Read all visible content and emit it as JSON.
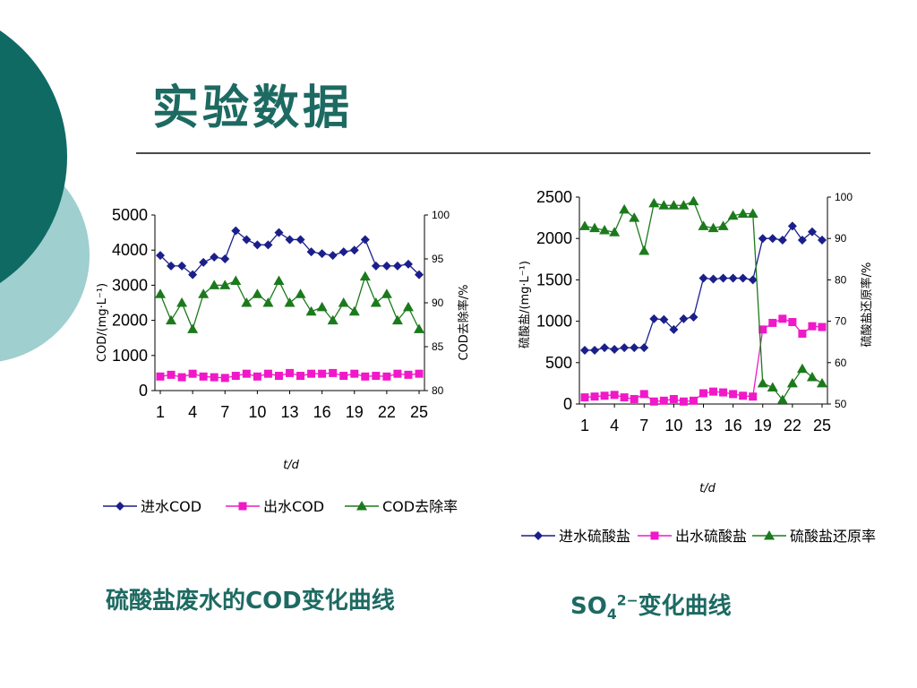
{
  "slide": {
    "title": "实验数据",
    "caption_left": "硫酸盐废水的COD变化曲线",
    "caption_right": {
      "base": "SO",
      "sub": "4",
      "sup": "2−",
      "rest": "变化曲线"
    }
  },
  "colors": {
    "teal_dark": "#0f6a64",
    "teal_light": "#9fcfcf",
    "navy": "#1a1f8a",
    "magenta": "#f018c8",
    "green": "#1b7a1b",
    "title": "#1d6a62"
  },
  "chart_data": [
    {
      "type": "line",
      "dual_axis": true,
      "x": [
        1,
        2,
        3,
        4,
        5,
        6,
        7,
        8,
        9,
        10,
        11,
        12,
        13,
        14,
        15,
        16,
        17,
        18,
        19,
        20,
        21,
        22,
        23,
        24,
        25
      ],
      "xticks": [
        1,
        4,
        7,
        10,
        13,
        16,
        19,
        22,
        25
      ],
      "xlabel": "t/d",
      "ylabel": "COD/(mg·L⁻¹)",
      "y2label": "COD去除率/%",
      "ylim": [
        0,
        5000
      ],
      "yticks": [
        0,
        1000,
        2000,
        3000,
        4000,
        5000
      ],
      "y2lim": [
        80,
        100
      ],
      "y2ticks": [
        80,
        85,
        90,
        95,
        100
      ],
      "series": [
        {
          "name": "进水COD",
          "axis": "left",
          "color": "#1a1f8a",
          "marker": "diamond",
          "values": [
            3850,
            3550,
            3550,
            3300,
            3650,
            3800,
            3750,
            4550,
            4300,
            4150,
            4150,
            4500,
            4300,
            4300,
            3950,
            3900,
            3850,
            3950,
            4000,
            4300,
            3550,
            3550,
            3550,
            3600,
            3300
          ]
        },
        {
          "name": "出水COD",
          "axis": "left",
          "color": "#f018c8",
          "marker": "square",
          "values": [
            400,
            450,
            380,
            480,
            400,
            380,
            360,
            420,
            480,
            400,
            480,
            420,
            500,
            420,
            480,
            480,
            500,
            420,
            480,
            400,
            420,
            400,
            480,
            450,
            480
          ]
        },
        {
          "name": "COD去除率",
          "axis": "right",
          "color": "#1b7a1b",
          "marker": "triangle",
          "values": [
            91,
            88,
            90,
            87,
            91,
            92,
            92,
            92.5,
            90,
            91,
            90,
            92.5,
            90,
            91,
            89,
            89.5,
            88,
            90,
            89,
            93,
            90,
            91,
            88,
            89.5,
            87
          ]
        }
      ]
    },
    {
      "type": "line",
      "dual_axis": true,
      "x": [
        1,
        2,
        3,
        4,
        5,
        6,
        7,
        8,
        9,
        10,
        11,
        12,
        13,
        14,
        15,
        16,
        17,
        18,
        19,
        20,
        21,
        22,
        23,
        24,
        25
      ],
      "xticks": [
        1,
        4,
        7,
        10,
        13,
        16,
        19,
        22,
        25
      ],
      "xlabel": "t/d",
      "ylabel": "硫酸盐/(mg·L⁻¹)",
      "y2label": "硫酸盐还原率/%",
      "ylim": [
        0,
        2500
      ],
      "yticks": [
        0,
        500,
        1000,
        1500,
        2000,
        2500
      ],
      "y2lim": [
        50,
        100
      ],
      "y2ticks": [
        50,
        60,
        70,
        80,
        90,
        100
      ],
      "series": [
        {
          "name": "进水硫酸盐",
          "axis": "left",
          "color": "#1a1f8a",
          "marker": "diamond",
          "values": [
            650,
            650,
            680,
            660,
            680,
            680,
            680,
            1030,
            1020,
            900,
            1030,
            1050,
            1520,
            1510,
            1520,
            1520,
            1520,
            1500,
            2000,
            2000,
            1980,
            2150,
            1980,
            2080,
            1980
          ]
        },
        {
          "name": "出水硫酸盐",
          "axis": "left",
          "color": "#f018c8",
          "marker": "square",
          "values": [
            80,
            90,
            100,
            110,
            80,
            60,
            120,
            30,
            40,
            60,
            30,
            40,
            130,
            150,
            140,
            120,
            100,
            90,
            900,
            980,
            1030,
            990,
            850,
            940,
            930
          ]
        },
        {
          "name": "硫酸盐还原率",
          "axis": "right",
          "color": "#1b7a1b",
          "marker": "triangle",
          "values": [
            93,
            92.5,
            92,
            91.5,
            97,
            95,
            87,
            98.5,
            98,
            98,
            98,
            99,
            93,
            92.5,
            93,
            95.5,
            96,
            96,
            55,
            54,
            51,
            55,
            58.5,
            56.5,
            55
          ]
        }
      ]
    }
  ]
}
